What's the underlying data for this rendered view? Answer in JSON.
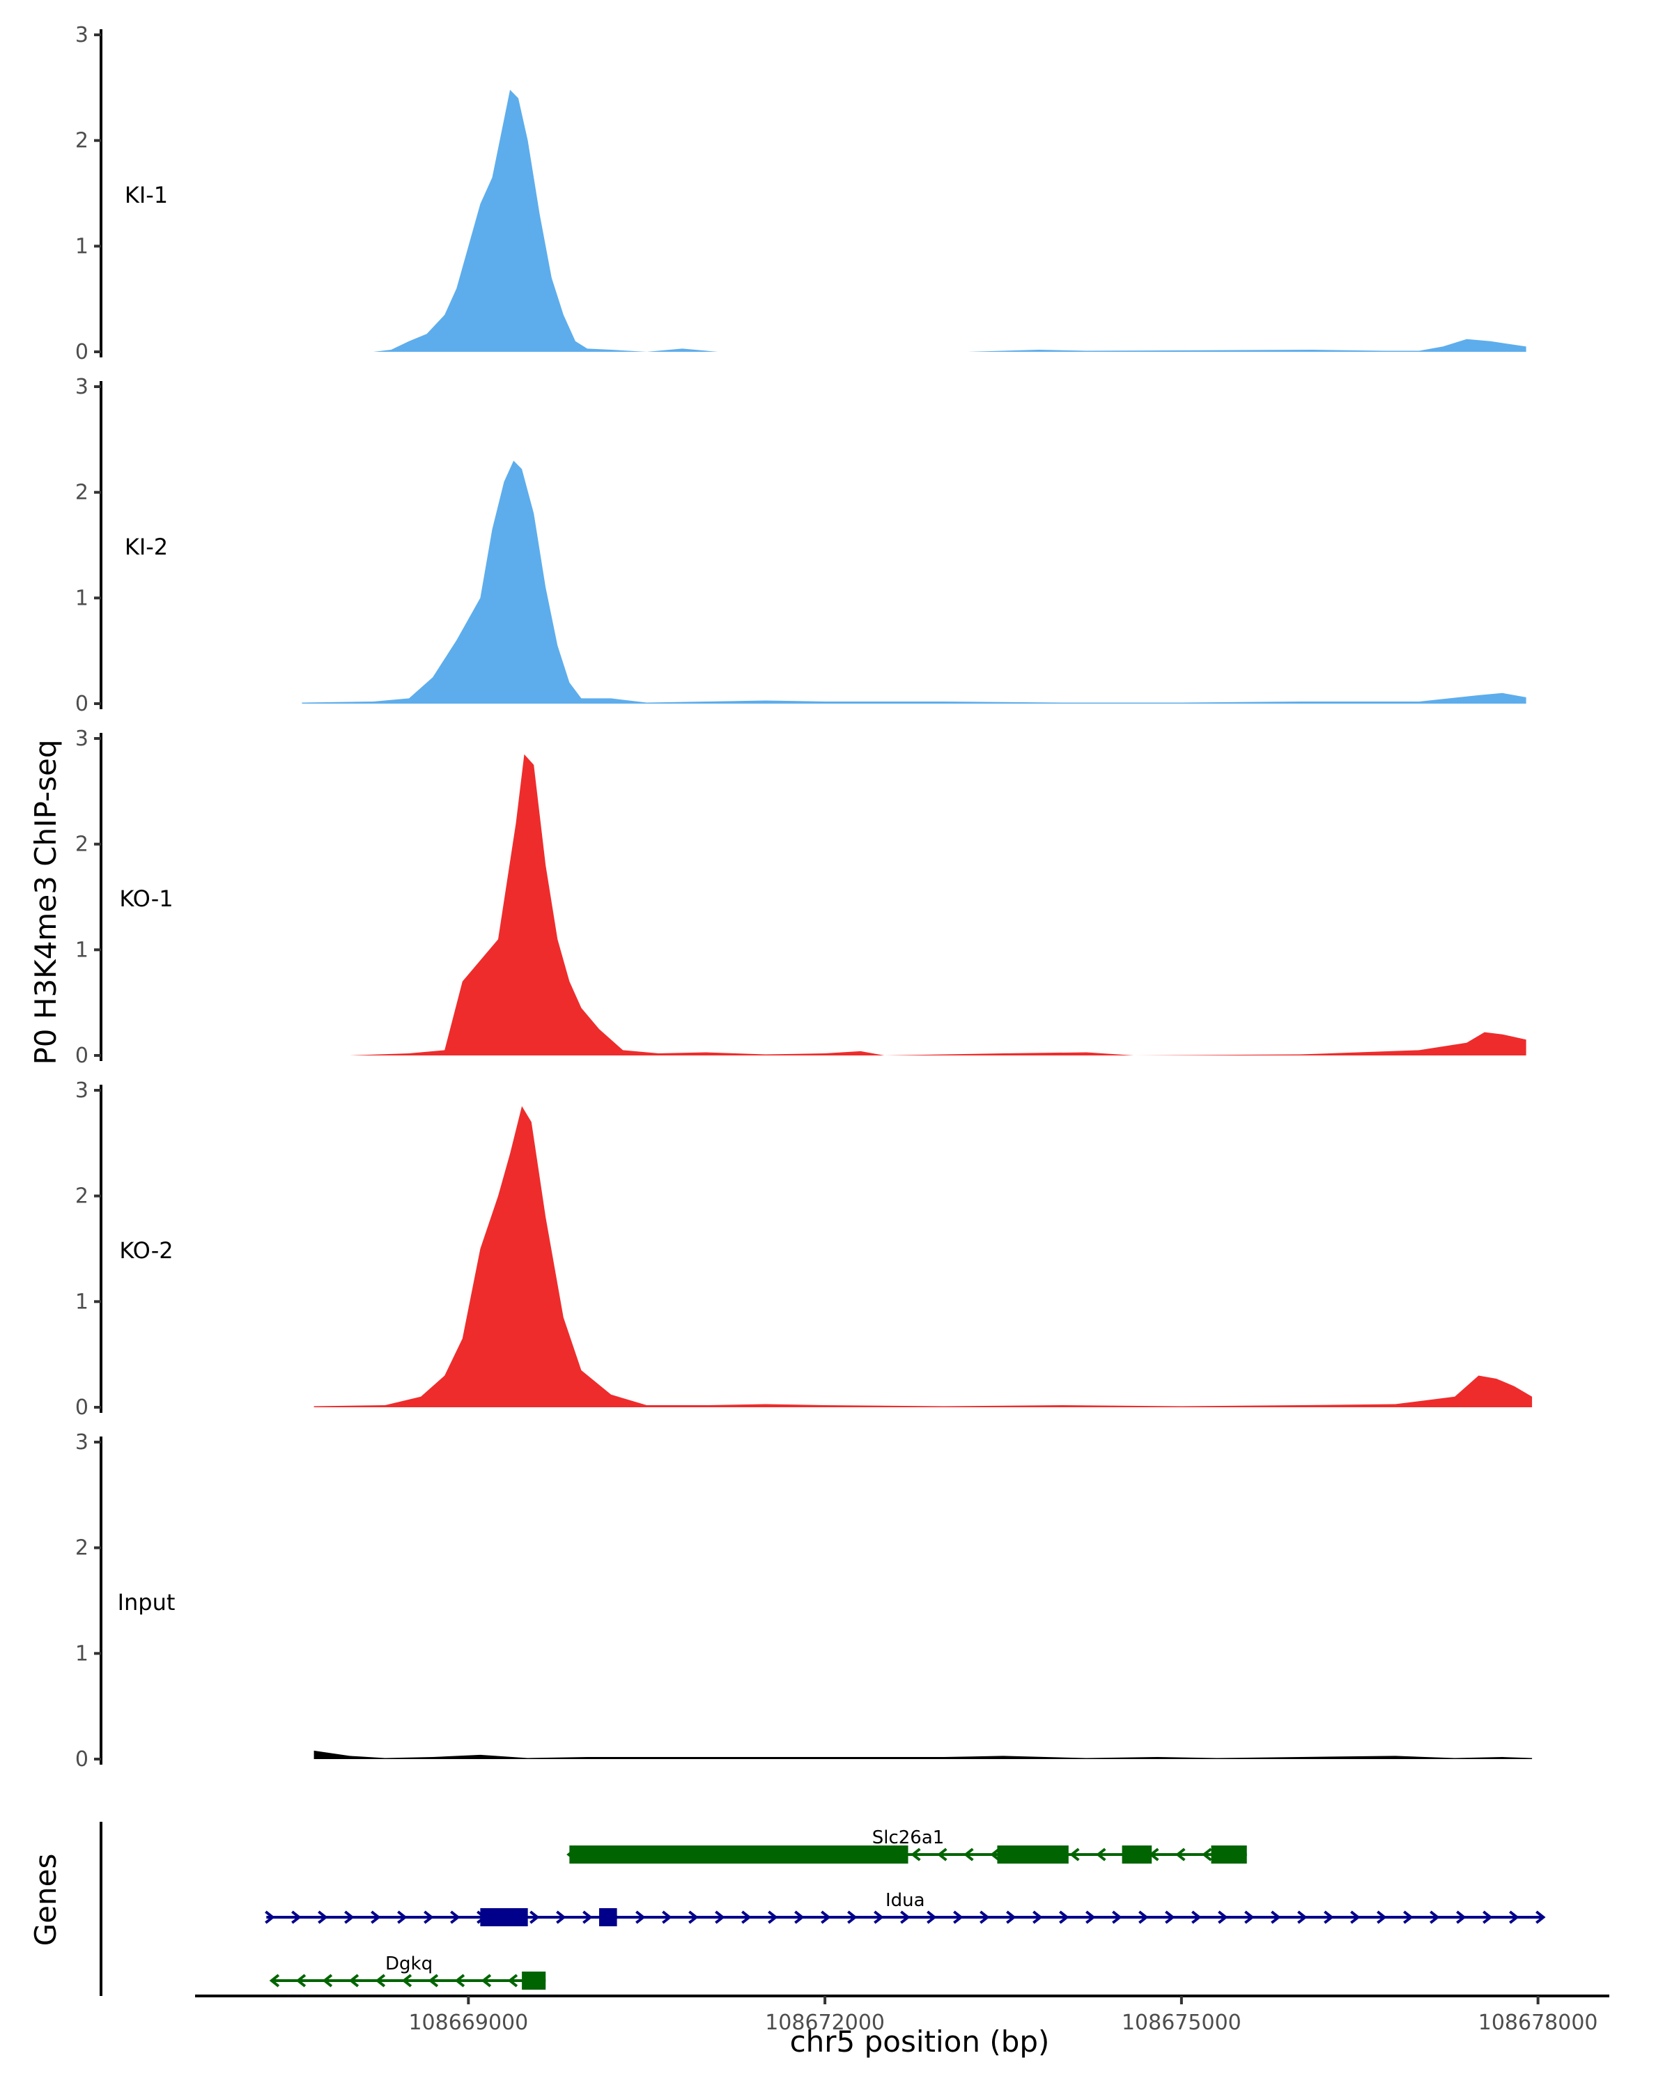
{
  "chart_data": {
    "type": "area",
    "ylabel": "P0 H3K4me3 ChIP-seq",
    "xlabel": "chr5 position (bp)",
    "xlim": [
      108666700,
      108678600
    ],
    "x_ticks": [
      108669000,
      108672000,
      108675000,
      108678000
    ],
    "x_tick_labels": [
      "108669000",
      "108672000",
      "108675000",
      "108678000"
    ],
    "ylim": [
      0,
      3
    ],
    "y_ticks": [
      0,
      1,
      2,
      3
    ],
    "y_tick_labels": [
      "0",
      "1",
      "2",
      "3"
    ],
    "grid": false,
    "tracks": [
      {
        "name": "KI-1",
        "color": "#5DADEC",
        "points": [
          [
            108668200,
            0
          ],
          [
            108668350,
            0.02
          ],
          [
            108668500,
            0.1
          ],
          [
            108668650,
            0.17
          ],
          [
            108668800,
            0.35
          ],
          [
            108668900,
            0.6
          ],
          [
            108669000,
            1.0
          ],
          [
            108669100,
            1.4
          ],
          [
            108669200,
            1.65
          ],
          [
            108669300,
            2.2
          ],
          [
            108669350,
            2.48
          ],
          [
            108669420,
            2.4
          ],
          [
            108669500,
            2.0
          ],
          [
            108669600,
            1.3
          ],
          [
            108669700,
            0.7
          ],
          [
            108669800,
            0.35
          ],
          [
            108669900,
            0.1
          ],
          [
            108670000,
            0.03
          ],
          [
            108670200,
            0.02
          ],
          [
            108670500,
            0
          ],
          [
            108670800,
            0.03
          ],
          [
            108671100,
            0
          ],
          [
            108673200,
            0
          ],
          [
            108673800,
            0.02
          ],
          [
            108674200,
            0.01
          ],
          [
            108676100,
            0.02
          ],
          [
            108676700,
            0.01
          ],
          [
            108677000,
            0.01
          ],
          [
            108677200,
            0.05
          ],
          [
            108677400,
            0.12
          ],
          [
            108677600,
            0.1
          ],
          [
            108677900,
            0.05
          ]
        ]
      },
      {
        "name": "KI-2",
        "color": "#5DADEC",
        "points": [
          [
            108667600,
            0.01
          ],
          [
            108668200,
            0.02
          ],
          [
            108668500,
            0.05
          ],
          [
            108668700,
            0.25
          ],
          [
            108668900,
            0.6
          ],
          [
            108669100,
            1.0
          ],
          [
            108669200,
            1.65
          ],
          [
            108669300,
            2.1
          ],
          [
            108669380,
            2.3
          ],
          [
            108669450,
            2.22
          ],
          [
            108669550,
            1.8
          ],
          [
            108669650,
            1.1
          ],
          [
            108669750,
            0.55
          ],
          [
            108669850,
            0.2
          ],
          [
            108669950,
            0.05
          ],
          [
            108670200,
            0.05
          ],
          [
            108670500,
            0.01
          ],
          [
            108671000,
            0.02
          ],
          [
            108671500,
            0.03
          ],
          [
            108672000,
            0.02
          ],
          [
            108673000,
            0.02
          ],
          [
            108674000,
            0.01
          ],
          [
            108675000,
            0.01
          ],
          [
            108676000,
            0.02
          ],
          [
            108677000,
            0.02
          ],
          [
            108677500,
            0.08
          ],
          [
            108677700,
            0.1
          ],
          [
            108677900,
            0.06
          ]
        ]
      },
      {
        "name": "KO-1",
        "color": "#EE2C2C",
        "points": [
          [
            108668000,
            0
          ],
          [
            108668500,
            0.02
          ],
          [
            108668800,
            0.05
          ],
          [
            108668950,
            0.7
          ],
          [
            108669100,
            0.9
          ],
          [
            108669250,
            1.1
          ],
          [
            108669400,
            2.2
          ],
          [
            108669470,
            2.85
          ],
          [
            108669550,
            2.75
          ],
          [
            108669650,
            1.8
          ],
          [
            108669750,
            1.1
          ],
          [
            108669850,
            0.7
          ],
          [
            108669950,
            0.45
          ],
          [
            108670100,
            0.25
          ],
          [
            108670300,
            0.05
          ],
          [
            108670600,
            0.02
          ],
          [
            108671000,
            0.03
          ],
          [
            108671500,
            0.01
          ],
          [
            108672000,
            0.02
          ],
          [
            108672300,
            0.04
          ],
          [
            108672500,
            0
          ],
          [
            108673500,
            0.02
          ],
          [
            108674200,
            0.03
          ],
          [
            108674600,
            0
          ],
          [
            108676000,
            0.01
          ],
          [
            108677000,
            0.05
          ],
          [
            108677400,
            0.12
          ],
          [
            108677550,
            0.22
          ],
          [
            108677700,
            0.2
          ],
          [
            108677900,
            0.15
          ]
        ]
      },
      {
        "name": "KO-2",
        "color": "#EE2C2C",
        "points": [
          [
            108667700,
            0.01
          ],
          [
            108668300,
            0.02
          ],
          [
            108668600,
            0.1
          ],
          [
            108668800,
            0.3
          ],
          [
            108668950,
            0.65
          ],
          [
            108669100,
            1.5
          ],
          [
            108669250,
            2.0
          ],
          [
            108669350,
            2.4
          ],
          [
            108669450,
            2.85
          ],
          [
            108669530,
            2.7
          ],
          [
            108669650,
            1.8
          ],
          [
            108669800,
            0.85
          ],
          [
            108669950,
            0.35
          ],
          [
            108670200,
            0.12
          ],
          [
            108670500,
            0.02
          ],
          [
            108671000,
            0.02
          ],
          [
            108671500,
            0.03
          ],
          [
            108672000,
            0.02
          ],
          [
            108673000,
            0.01
          ],
          [
            108674000,
            0.02
          ],
          [
            108675000,
            0.01
          ],
          [
            108676000,
            0.02
          ],
          [
            108676800,
            0.03
          ],
          [
            108677300,
            0.1
          ],
          [
            108677500,
            0.3
          ],
          [
            108677650,
            0.27
          ],
          [
            108677800,
            0.2
          ],
          [
            108677950,
            0.1
          ]
        ]
      },
      {
        "name": "Input",
        "color": "#000000",
        "points": [
          [
            108667700,
            0.08
          ],
          [
            108668000,
            0.03
          ],
          [
            108668300,
            0.01
          ],
          [
            108668700,
            0.02
          ],
          [
            108669100,
            0.04
          ],
          [
            108669500,
            0.01
          ],
          [
            108670000,
            0.02
          ],
          [
            108670700,
            0.02
          ],
          [
            108671500,
            0.02
          ],
          [
            108672300,
            0.02
          ],
          [
            108673000,
            0.02
          ],
          [
            108673500,
            0.03
          ],
          [
            108674200,
            0.01
          ],
          [
            108674800,
            0.02
          ],
          [
            108675300,
            0.01
          ],
          [
            108676000,
            0.02
          ],
          [
            108676800,
            0.03
          ],
          [
            108677300,
            0.01
          ],
          [
            108677700,
            0.02
          ],
          [
            108677950,
            0.01
          ]
        ]
      }
    ],
    "genes_track": {
      "label": "Genes",
      "genes": [
        {
          "name": "Slc26a1",
          "strand": "-",
          "color": "#006400",
          "start": 108669850,
          "end": 108675550,
          "exons": [
            [
              108669850,
              108672700
            ],
            [
              108673450,
              108674050
            ],
            [
              108674500,
              108674750
            ],
            [
              108675250,
              108675550
            ]
          ]
        },
        {
          "name": "Idua",
          "strand": "+",
          "color": "#00008B",
          "start": 108667300,
          "end": 108678050,
          "exons": [
            [
              108669100,
              108669500
            ],
            [
              108670100,
              108670250
            ]
          ]
        },
        {
          "name": "Dgkq",
          "strand": "-",
          "color": "#006400",
          "start": 108667350,
          "end": 108669650,
          "exons": [
            [
              108669450,
              108669650
            ]
          ]
        }
      ]
    }
  }
}
